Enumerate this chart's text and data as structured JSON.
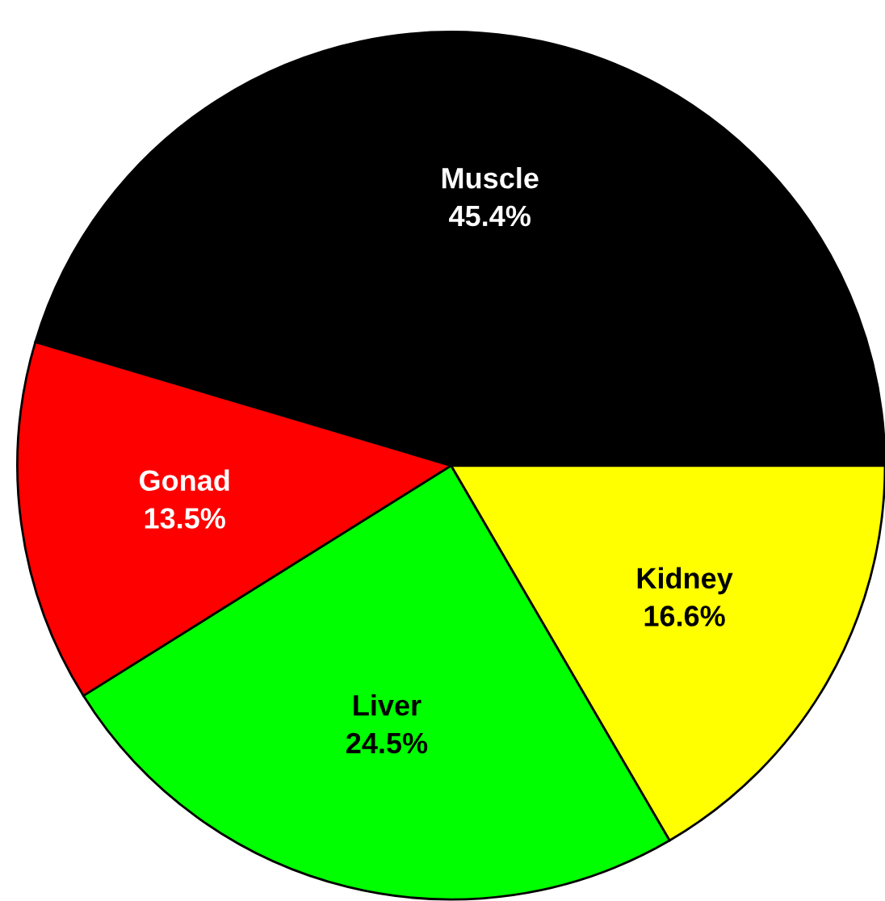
{
  "chart_data": {
    "type": "pie",
    "categories": [
      "Muscle",
      "Gonad",
      "Liver",
      "Kidney"
    ],
    "values": [
      45.4,
      13.5,
      24.5,
      16.6
    ],
    "value_labels": [
      "45.4%",
      "13.5%",
      "24.5%",
      "16.6%"
    ],
    "colors": [
      "#000000",
      "#ff0000",
      "#00ff00",
      "#ffff00"
    ],
    "legend": false
  }
}
